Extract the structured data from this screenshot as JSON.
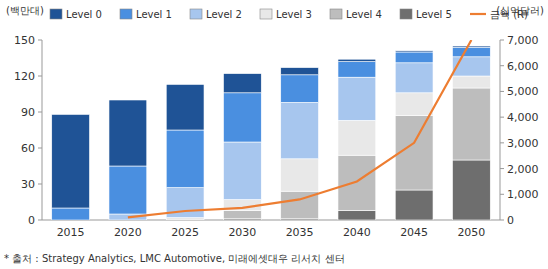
{
  "chart_data": {
    "type": "bar",
    "stacked": true,
    "grid": false,
    "legend": "top",
    "ylabel": "(백만대)",
    "y2label": "(십억달러)",
    "note": "* 출처 : Strategy Analytics, LMC Automotive, 미래에셋대우 리서치 센터",
    "categories": [
      "2015",
      "2020",
      "2025",
      "2030",
      "2035",
      "2040",
      "2045",
      "2050"
    ],
    "ylim": [
      0,
      150
    ],
    "yticks": [
      0,
      30,
      60,
      90,
      120,
      150
    ],
    "y2lim": [
      0,
      7000
    ],
    "y2ticks": [
      0,
      {
        "value": 1000,
        "label": "1,000"
      },
      {
        "value": 2000,
        "label": "2,000"
      },
      {
        "value": 3000,
        "label": "3,000"
      },
      {
        "value": 4000,
        "label": "4,000"
      },
      {
        "value": 5000,
        "label": "5,000"
      },
      {
        "value": 6000,
        "label": "6,000"
      },
      {
        "value": 7000,
        "label": "7,000"
      }
    ],
    "series": [
      {
        "name": "Level 0",
        "type": "bar",
        "color": "#1f5396",
        "values": [
          78,
          55,
          38,
          16,
          6,
          2,
          1,
          1
        ]
      },
      {
        "name": "Level 1",
        "type": "bar",
        "color": "#4a8fe0",
        "values": [
          10,
          40,
          48,
          41,
          23,
          13,
          9,
          8
        ]
      },
      {
        "name": "Level 2",
        "type": "bar",
        "color": "#a7c6ee",
        "values": [
          0,
          5,
          25,
          48,
          47,
          36,
          25,
          16
        ]
      },
      {
        "name": "Level 3",
        "type": "bar",
        "color": "#e8e8e8",
        "values": [
          0,
          0,
          2,
          9,
          27,
          29,
          19,
          10
        ]
      },
      {
        "name": "Level 4",
        "type": "bar",
        "color": "#bdbdbd",
        "values": [
          0,
          0,
          0,
          7,
          23,
          46,
          62,
          60
        ]
      },
      {
        "name": "Level 5",
        "type": "bar",
        "color": "#6e6e6e",
        "values": [
          0,
          0,
          0,
          1,
          1,
          8,
          25,
          50
        ]
      },
      {
        "name": "금액 (R)",
        "type": "line",
        "axis": "y2",
        "color": "#ed7d31",
        "values": [
          null,
          100,
          350,
          470,
          800,
          1500,
          3000,
          7000
        ]
      }
    ]
  }
}
